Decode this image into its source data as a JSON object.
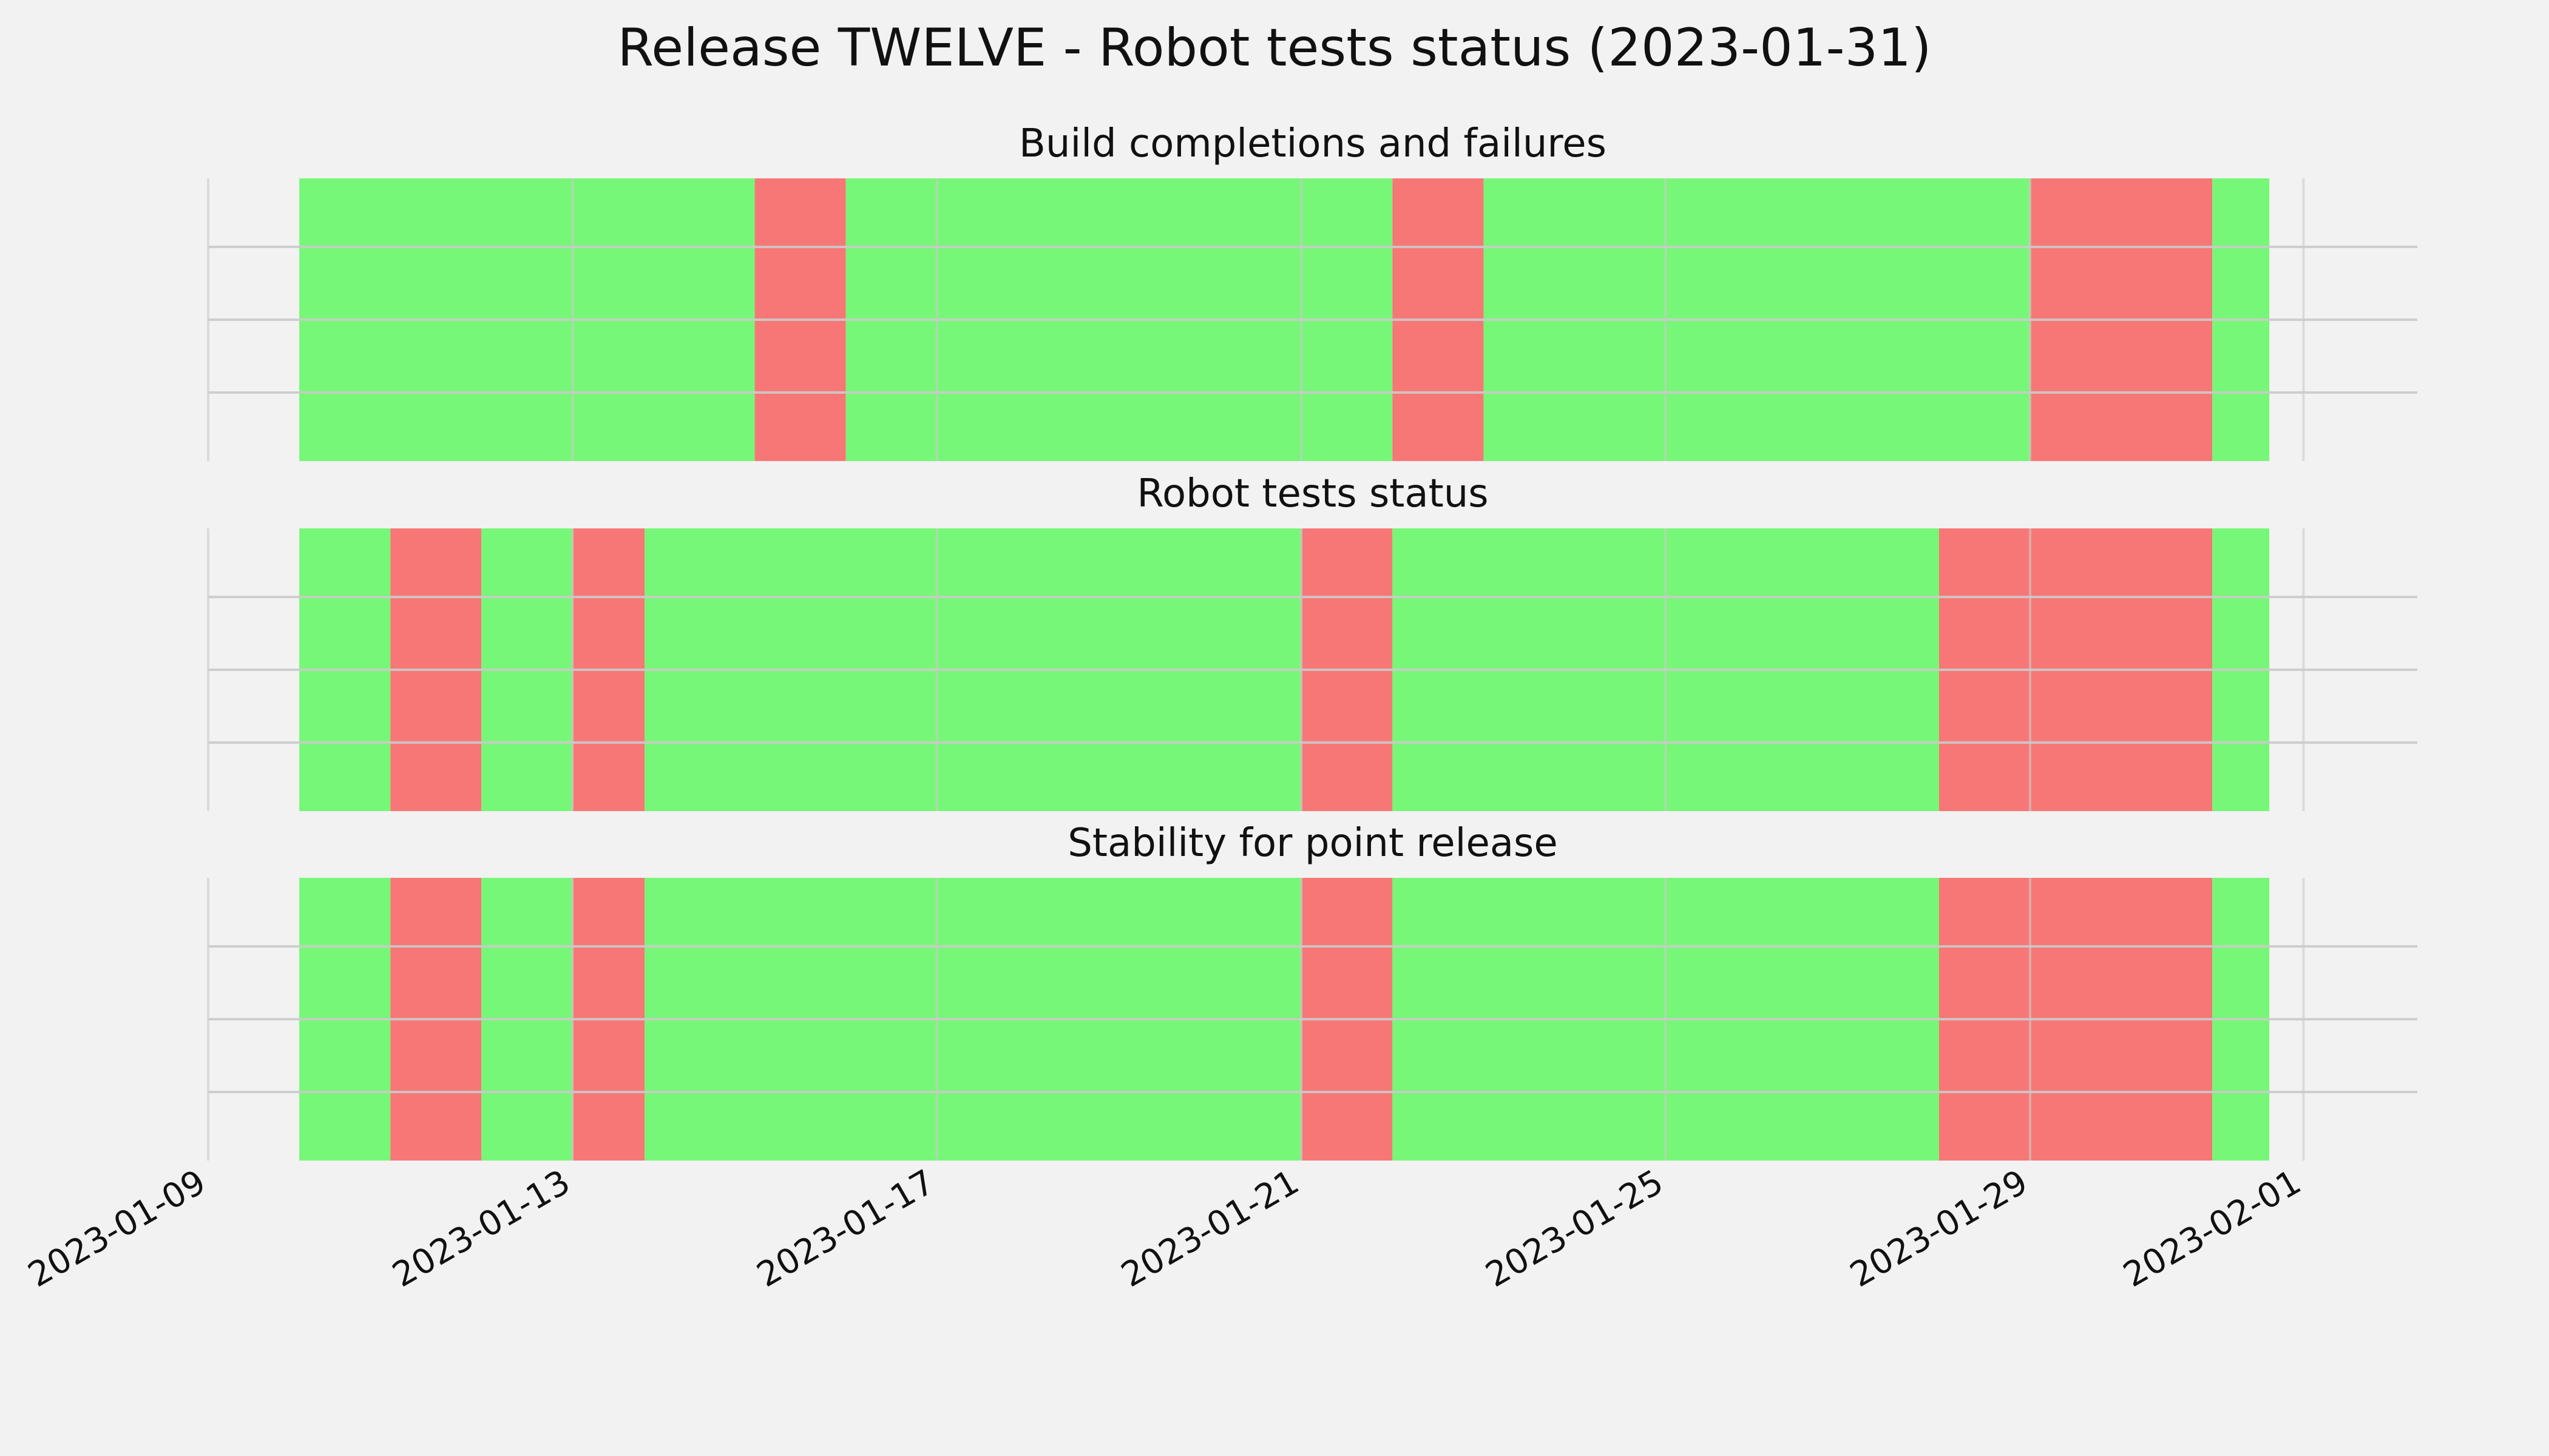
{
  "chart_data": {
    "type": "timeline",
    "title": "Release TWELVE - Robot tests status (2023-01-31)",
    "x_axis": {
      "type": "date",
      "range": [
        "2023-01-09",
        "2023-02-02T06:00"
      ],
      "ticks": [
        "2023-01-09",
        "2023-01-13",
        "2023-01-17",
        "2023-01-21",
        "2023-01-25",
        "2023-01-29",
        "2023-02-01"
      ]
    },
    "grid": true,
    "colors": {
      "pass": "#77f777",
      "fail": "#f77777",
      "background": "#f2f2f2",
      "grid": "#cbcbcb"
    },
    "panels": [
      {
        "title": "Build completions and failures",
        "segments": [
          {
            "start": "2023-01-10T00:00",
            "end": "2023-01-15T00:00",
            "status": "pass"
          },
          {
            "start": "2023-01-15T00:00",
            "end": "2023-01-16T00:00",
            "status": "fail"
          },
          {
            "start": "2023-01-16T00:00",
            "end": "2023-01-22T00:00",
            "status": "pass"
          },
          {
            "start": "2023-01-22T00:00",
            "end": "2023-01-23T00:00",
            "status": "fail"
          },
          {
            "start": "2023-01-23T00:00",
            "end": "2023-01-29T00:00",
            "status": "pass"
          },
          {
            "start": "2023-01-29T00:00",
            "end": "2023-01-31T00:00",
            "status": "fail"
          },
          {
            "start": "2023-01-31T00:00",
            "end": "2023-01-31T15:00",
            "status": "pass"
          }
        ]
      },
      {
        "title": "Robot tests status",
        "segments": [
          {
            "start": "2023-01-10T00:00",
            "end": "2023-01-11T00:00",
            "status": "pass"
          },
          {
            "start": "2023-01-11T00:00",
            "end": "2023-01-12T00:00",
            "status": "fail"
          },
          {
            "start": "2023-01-12T00:00",
            "end": "2023-01-13T00:00",
            "status": "pass"
          },
          {
            "start": "2023-01-13T00:00",
            "end": "2023-01-13T19:00",
            "status": "fail"
          },
          {
            "start": "2023-01-13T19:00",
            "end": "2023-01-21T00:00",
            "status": "pass"
          },
          {
            "start": "2023-01-21T00:00",
            "end": "2023-01-22T00:00",
            "status": "fail"
          },
          {
            "start": "2023-01-22T00:00",
            "end": "2023-01-28T00:00",
            "status": "pass"
          },
          {
            "start": "2023-01-28T00:00",
            "end": "2023-01-31T00:00",
            "status": "fail"
          },
          {
            "start": "2023-01-31T00:00",
            "end": "2023-01-31T15:00",
            "status": "pass"
          }
        ]
      },
      {
        "title": "Stability for point release",
        "segments": [
          {
            "start": "2023-01-10T00:00",
            "end": "2023-01-11T00:00",
            "status": "pass"
          },
          {
            "start": "2023-01-11T00:00",
            "end": "2023-01-12T00:00",
            "status": "fail"
          },
          {
            "start": "2023-01-12T00:00",
            "end": "2023-01-13T00:00",
            "status": "pass"
          },
          {
            "start": "2023-01-13T00:00",
            "end": "2023-01-13T19:00",
            "status": "fail"
          },
          {
            "start": "2023-01-13T19:00",
            "end": "2023-01-21T00:00",
            "status": "pass"
          },
          {
            "start": "2023-01-21T00:00",
            "end": "2023-01-22T00:00",
            "status": "fail"
          },
          {
            "start": "2023-01-22T00:00",
            "end": "2023-01-28T00:00",
            "status": "pass"
          },
          {
            "start": "2023-01-28T00:00",
            "end": "2023-01-31T00:00",
            "status": "fail"
          },
          {
            "start": "2023-01-31T00:00",
            "end": "2023-01-31T15:00",
            "status": "pass"
          }
        ]
      }
    ]
  }
}
